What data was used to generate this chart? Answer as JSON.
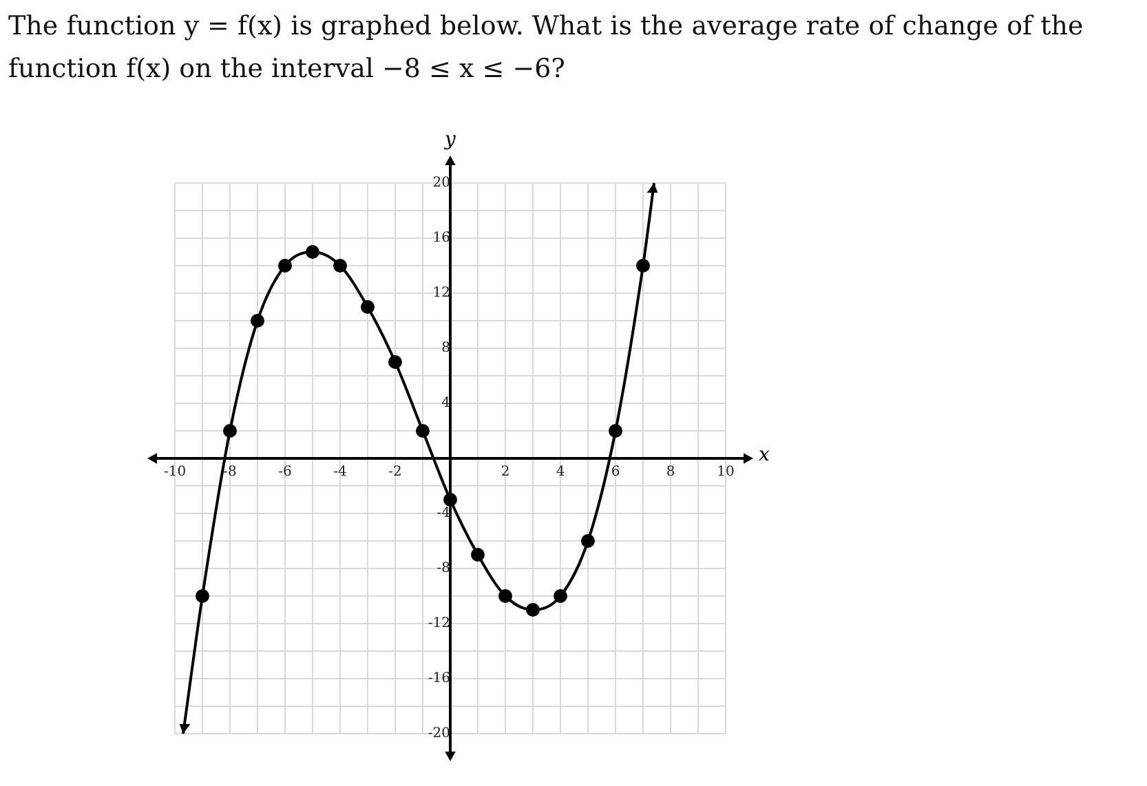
{
  "chart_data": {
    "type": "line",
    "title": "The function y = f(x) is graphed below. What is the average rate of change of the function f(x) on the interval −8 ≤ x ≤ −6?",
    "xlabel": "x",
    "ylabel": "y",
    "series": [
      {
        "color": "#000000",
        "marker": "none",
        "line_style": "solid",
        "x": [
          -9.7,
          -9,
          -8,
          -7,
          -6,
          -5,
          -4,
          -3,
          -2,
          -1,
          0,
          1,
          2,
          3,
          4,
          5,
          6,
          7,
          7.4
        ],
        "values": [
          -20,
          -10,
          2,
          10,
          14,
          15,
          14,
          11,
          7,
          2,
          -3,
          -7,
          -10,
          -11,
          -10,
          -6,
          2,
          14,
          20
        ]
      },
      {
        "type": "scatter",
        "color": "#000000",
        "marker": "circle",
        "x": [
          -9,
          -8,
          -7,
          -6,
          -5,
          -4,
          -3,
          -2,
          -1,
          0,
          1,
          2,
          3,
          4,
          5,
          6,
          7
        ],
        "values": [
          -10,
          2,
          10,
          14,
          15,
          14,
          11,
          7,
          2,
          -3,
          -7,
          -10,
          -11,
          -10,
          -6,
          2,
          14
        ]
      }
    ],
    "xlim": [
      -10,
      10
    ],
    "ylim": [
      -20,
      20
    ],
    "xticks": [
      -10,
      {
        "value": -9,
        "label": null
      },
      -8,
      {
        "value": -7,
        "label": null
      },
      -6,
      {
        "value": -5,
        "label": null
      },
      -4,
      {
        "value": -3,
        "label": null
      },
      -2,
      {
        "value": -1,
        "label": null
      },
      {
        "value": 0,
        "label": null
      },
      {
        "value": 1,
        "label": null
      },
      2,
      {
        "value": 3,
        "label": null
      },
      4,
      {
        "value": 5,
        "label": null
      },
      6,
      {
        "value": 7,
        "label": null
      },
      8,
      {
        "value": 9,
        "label": null
      },
      10
    ],
    "yticks": [
      -20,
      {
        "value": -18,
        "label": null
      },
      -16,
      {
        "value": -14,
        "label": null
      },
      -12,
      {
        "value": -10,
        "label": null
      },
      -8,
      {
        "value": -6,
        "label": null
      },
      -4,
      {
        "value": -2,
        "label": null
      },
      {
        "value": 0,
        "label": null
      },
      {
        "value": 2,
        "label": null
      },
      4,
      {
        "value": 6,
        "label": null
      },
      8,
      {
        "value": 10,
        "label": null
      },
      12,
      {
        "value": 14,
        "label": null
      },
      16,
      {
        "value": 18,
        "label": null
      },
      20
    ],
    "grid": true,
    "legend": false
  }
}
